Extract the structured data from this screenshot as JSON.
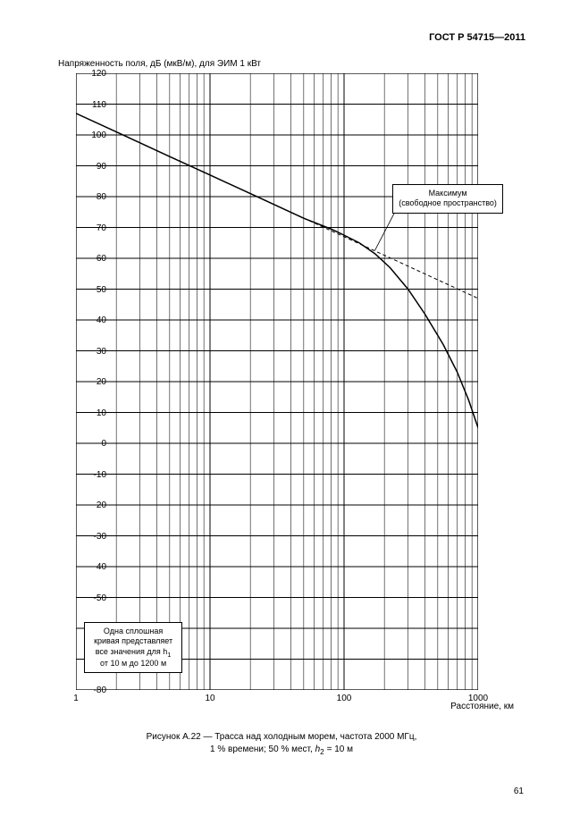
{
  "doc_header": "ГОСТ Р 54715—2011",
  "page_number": "61",
  "chart": {
    "type": "line",
    "y_title": "Напряженность поля, дБ (мкВ/м), для ЭИМ 1 кВт",
    "x_title": "Расстояние, км",
    "ylim": [
      -80,
      120
    ],
    "ytick_step": 10,
    "xlim_log10": [
      0,
      3
    ],
    "x_ticks": [
      1,
      10,
      100,
      1000
    ],
    "x_tick_labels": [
      "1",
      "10",
      "100",
      "1000"
    ],
    "log_minor": [
      2,
      3,
      4,
      5,
      6,
      7,
      8,
      9
    ],
    "background_color": "#ffffff",
    "axis_color": "#000000",
    "grid_color": "#000000",
    "grid_width_major": 1.0,
    "grid_width_minor": 0.55,
    "font_size_axis": 10,
    "curves": {
      "free_space": {
        "label_lines": [
          "Максимум",
          "(свободное пространство)"
        ],
        "dash": "4,3",
        "width": 1.0,
        "color": "#000000",
        "points": [
          {
            "x": 1,
            "y": 107
          },
          {
            "x": 10,
            "y": 87
          },
          {
            "x": 100,
            "y": 67
          },
          {
            "x": 1000,
            "y": 47
          }
        ]
      },
      "main": {
        "label_lines": [
          "Одна сплошная",
          "кривая представляет",
          "все значения для h",
          "от 10 м до 1200 м"
        ],
        "h_subscript": "1",
        "dash": "none",
        "width": 1.5,
        "color": "#000000",
        "points": [
          {
            "x": 1,
            "y": 107
          },
          {
            "x": 2,
            "y": 101
          },
          {
            "x": 5,
            "y": 93
          },
          {
            "x": 10,
            "y": 87
          },
          {
            "x": 20,
            "y": 81
          },
          {
            "x": 50,
            "y": 73
          },
          {
            "x": 80,
            "y": 69.5
          },
          {
            "x": 100,
            "y": 67.5
          },
          {
            "x": 130,
            "y": 65
          },
          {
            "x": 170,
            "y": 61.5
          },
          {
            "x": 220,
            "y": 57
          },
          {
            "x": 300,
            "y": 50
          },
          {
            "x": 400,
            "y": 42
          },
          {
            "x": 550,
            "y": 32
          },
          {
            "x": 700,
            "y": 23
          },
          {
            "x": 850,
            "y": 14
          },
          {
            "x": 1000,
            "y": 5
          }
        ]
      }
    }
  },
  "caption_line1": "Рисунок А.22 — Трасса над холодным морем, частота 2000 МГц,",
  "caption_line2_pre": "1 % времени; 50 % мест, ",
  "caption_h": "h",
  "caption_sub": "2",
  "caption_line2_post": " = 10 м"
}
